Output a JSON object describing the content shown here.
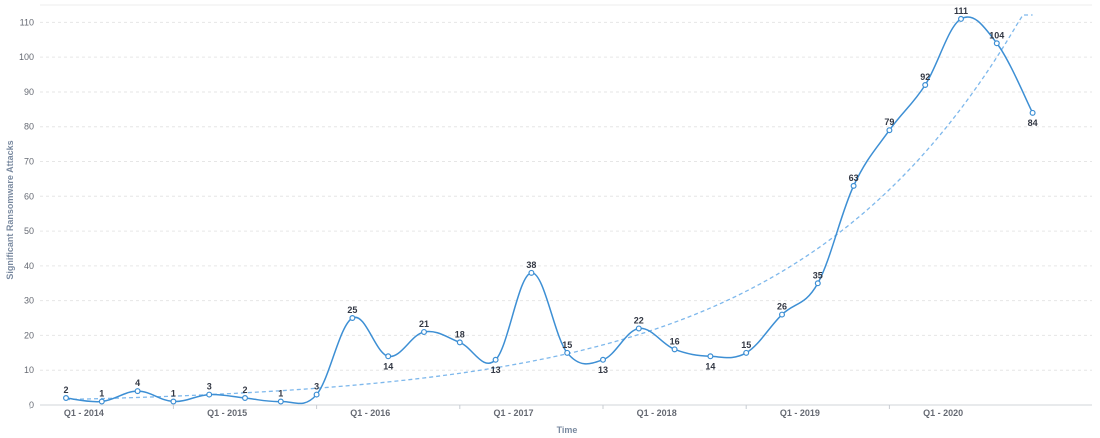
{
  "chart_data": {
    "type": "line",
    "title": "",
    "xlabel": "Time",
    "ylabel": "Significant Ransomware Attacks",
    "ylim": [
      0,
      115
    ],
    "yticks": [
      0,
      10,
      20,
      30,
      40,
      50,
      60,
      70,
      80,
      90,
      100,
      110
    ],
    "x_tick_labels": [
      {
        "index": 0.5,
        "label": "Q1 - 2014"
      },
      {
        "index": 4.5,
        "label": "Q1 - 2015"
      },
      {
        "index": 8.5,
        "label": "Q1 - 2016"
      },
      {
        "index": 12.5,
        "label": "Q1 - 2017"
      },
      {
        "index": 16.5,
        "label": "Q1 - 2018"
      },
      {
        "index": 20.5,
        "label": "Q1 - 2019"
      },
      {
        "index": 24.5,
        "label": "Q1 - 2020"
      }
    ],
    "grid": true,
    "series": [
      {
        "values": [
          2,
          1,
          4,
          1,
          3,
          2,
          1,
          3,
          25,
          14,
          21,
          18,
          13,
          38,
          15,
          13,
          22,
          16,
          14,
          15,
          26,
          35,
          63,
          79,
          92,
          111,
          104,
          84
        ],
        "label_below": [
          false,
          false,
          false,
          false,
          false,
          false,
          false,
          false,
          false,
          true,
          false,
          false,
          true,
          false,
          false,
          true,
          false,
          false,
          true,
          false,
          false,
          false,
          false,
          false,
          false,
          false,
          false,
          true
        ],
        "color": "#3d8fd4",
        "style": "solid smooth with hollow markers"
      },
      {
        "type": "exponential trendline",
        "color": "#7eb8ec",
        "style": "dashed"
      }
    ]
  }
}
